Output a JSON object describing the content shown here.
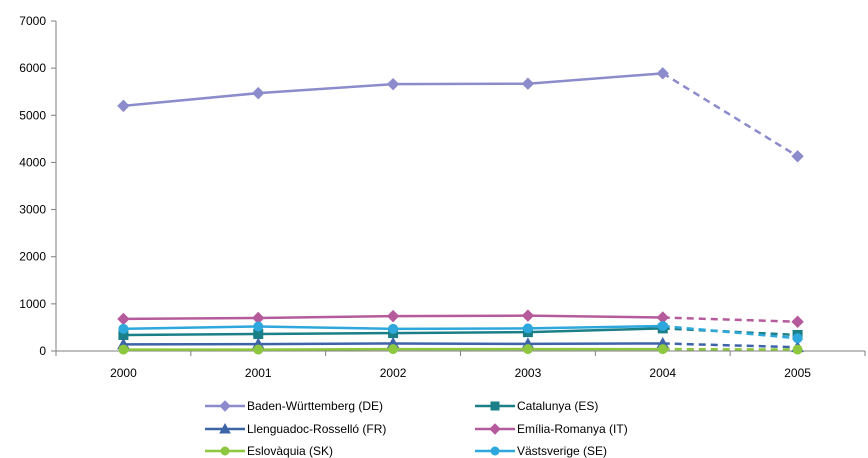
{
  "chart_data": {
    "type": "line",
    "title": "",
    "xlabel": "",
    "ylabel": "",
    "categories": [
      "2000",
      "2001",
      "2002",
      "2003",
      "2004",
      "2005"
    ],
    "ylim": [
      0,
      7000
    ],
    "yticks": [
      "0",
      "1000",
      "2000",
      "3000",
      "4000",
      "5000",
      "6000",
      "7000"
    ],
    "grid": false,
    "legend_position": "bottom",
    "dashed_last_segment": true,
    "series": [
      {
        "name": "Baden-Württemberg (DE)",
        "values": [
          5200,
          5470,
          5660,
          5670,
          5890,
          4130
        ],
        "color": "#8c8ccc",
        "marker": "diamond"
      },
      {
        "name": "Catalunya (ES)",
        "values": [
          340,
          360,
          380,
          400,
          480,
          340
        ],
        "color": "#1a7f86",
        "marker": "square"
      },
      {
        "name": "Llenguadoc-Rosselló (FR)",
        "values": [
          140,
          145,
          160,
          150,
          160,
          80
        ],
        "color": "#3e64a8",
        "marker": "triangle"
      },
      {
        "name": "Emília-Romanya (IT)",
        "values": [
          680,
          700,
          740,
          750,
          710,
          620
        ],
        "color": "#b55b9c",
        "marker": "diamond"
      },
      {
        "name": "Eslovàquia (SK)",
        "values": [
          30,
          30,
          40,
          40,
          40,
          30
        ],
        "color": "#8dc63f",
        "marker": "circle"
      },
      {
        "name": "Västsverige (SE)",
        "values": [
          470,
          520,
          470,
          480,
          530,
          270
        ],
        "color": "#2ea8dc",
        "marker": "circle"
      }
    ]
  }
}
